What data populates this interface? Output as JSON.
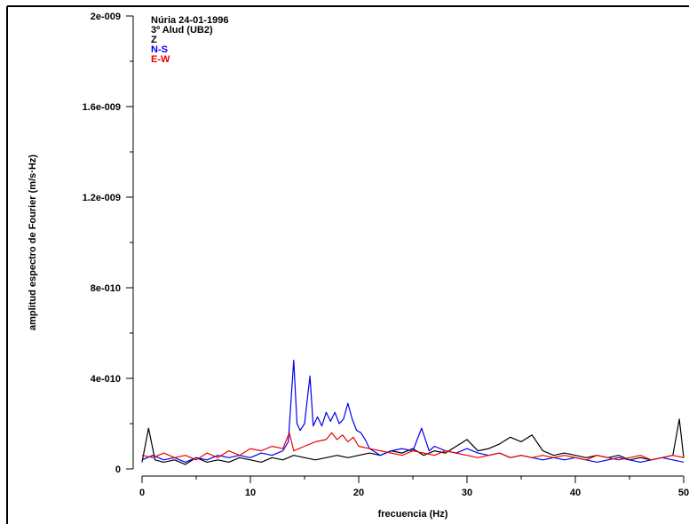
{
  "chart_data": {
    "type": "line",
    "xlabel": "frecuencia (Hz)",
    "ylabel": "amplitud espectro de Fourier (m/s·Hz)",
    "xlim": [
      0,
      50
    ],
    "ylim": [
      0,
      2e-09
    ],
    "x_ticks": [
      0,
      10,
      20,
      30,
      40,
      50
    ],
    "x_tick_labels": [
      "0",
      "10",
      "20",
      "30",
      "40",
      "50"
    ],
    "y_ticks": [
      0,
      4e-10,
      8e-10,
      1.2e-09,
      1.6e-09,
      2e-09
    ],
    "y_tick_labels": [
      "0",
      "4e-010",
      "8e-010",
      "1.2e-009",
      "1.6e-009",
      "2e-009"
    ],
    "legend_position": "top-left",
    "legend_lines": [
      {
        "text": "Núria 24-01-1996",
        "color": "#000000"
      },
      {
        "text": "3º Alud (UB2)",
        "color": "#000000"
      },
      {
        "text": "Z",
        "color": "#000000"
      },
      {
        "text": "N-S",
        "color": "#0000ee"
      },
      {
        "text": "E-W",
        "color": "#ee0000"
      }
    ],
    "series": [
      {
        "name": "Z",
        "color": "#000000",
        "x": [
          0,
          0.6,
          1.2,
          2,
          3,
          4,
          5,
          6,
          7,
          8,
          9,
          10,
          11,
          12,
          13,
          14,
          15,
          16,
          17,
          18,
          19,
          20,
          21,
          22,
          23,
          24,
          25,
          26,
          27,
          28,
          29,
          30,
          31,
          32,
          33,
          34,
          35,
          36,
          37,
          38,
          39,
          40,
          41,
          42,
          43,
          44,
          45,
          46,
          47,
          48,
          49,
          49.6,
          50
        ],
        "values": [
          3e-11,
          1.8e-10,
          4e-11,
          3e-11,
          4e-11,
          2e-11,
          5e-11,
          3e-11,
          4e-11,
          3e-11,
          5e-11,
          4e-11,
          3e-11,
          5e-11,
          4e-11,
          6e-11,
          5e-11,
          4e-11,
          5e-11,
          6e-11,
          5e-11,
          6e-11,
          7e-11,
          6e-11,
          8e-11,
          7e-11,
          9e-11,
          6e-11,
          8e-11,
          7e-11,
          1e-10,
          1.3e-10,
          8e-11,
          9e-11,
          1.1e-10,
          1.4e-10,
          1.2e-10,
          1.5e-10,
          8e-11,
          6e-11,
          7e-11,
          6e-11,
          5e-11,
          6e-11,
          5e-11,
          6e-11,
          4e-11,
          5e-11,
          4e-11,
          5e-11,
          6e-11,
          2.2e-10,
          5e-11
        ]
      },
      {
        "name": "N-S",
        "color": "#0000ee",
        "x": [
          0,
          1,
          2,
          3,
          4,
          5,
          6,
          7,
          8,
          9,
          10,
          11,
          12,
          13,
          13.5,
          14,
          14.3,
          14.6,
          15,
          15.5,
          15.8,
          16.2,
          16.6,
          17,
          17.4,
          17.8,
          18.2,
          18.6,
          19,
          19.4,
          19.8,
          20.2,
          20.6,
          21,
          22,
          23,
          24,
          25,
          25.8,
          26.5,
          27,
          28,
          29,
          30,
          31,
          32,
          33,
          34,
          35,
          36,
          37,
          38,
          39,
          40,
          41,
          42,
          43,
          44,
          45,
          46,
          47,
          48,
          49,
          50
        ],
        "values": [
          4e-11,
          6e-11,
          4e-11,
          5e-11,
          3e-11,
          5e-11,
          4e-11,
          6e-11,
          5e-11,
          6e-11,
          5e-11,
          7e-11,
          6e-11,
          8e-11,
          1.2e-10,
          4.8e-10,
          2e-10,
          1.7e-10,
          2e-10,
          4.1e-10,
          1.9e-10,
          2.3e-10,
          1.9e-10,
          2.5e-10,
          2.1e-10,
          2.5e-10,
          2e-10,
          2.2e-10,
          2.9e-10,
          2.2e-10,
          1.7e-10,
          1.6e-10,
          1.3e-10,
          9e-11,
          6e-11,
          8e-11,
          9e-11,
          8e-11,
          1.8e-10,
          8e-11,
          1e-10,
          8e-11,
          7e-11,
          9e-11,
          7e-11,
          6e-11,
          7e-11,
          5e-11,
          6e-11,
          5e-11,
          4e-11,
          5e-11,
          4e-11,
          5e-11,
          4e-11,
          3e-11,
          4e-11,
          5e-11,
          4e-11,
          3e-11,
          4e-11,
          5e-11,
          4e-11,
          3e-11
        ]
      },
      {
        "name": "E-W",
        "color": "#ee0000",
        "x": [
          0,
          1,
          2,
          3,
          4,
          5,
          6,
          7,
          8,
          9,
          10,
          11,
          12,
          13,
          13.6,
          14,
          15,
          16,
          17,
          17.5,
          18,
          18.5,
          19,
          19.5,
          20,
          21,
          22,
          23,
          24,
          25,
          26,
          27,
          28,
          29,
          30,
          31,
          32,
          33,
          34,
          35,
          36,
          37,
          38,
          39,
          40,
          41,
          42,
          43,
          44,
          45,
          46,
          47,
          48,
          49,
          50
        ],
        "values": [
          6e-11,
          5e-11,
          7e-11,
          5e-11,
          6e-11,
          4e-11,
          7e-11,
          5e-11,
          8e-11,
          6e-11,
          9e-11,
          8e-11,
          1e-10,
          9e-11,
          1.6e-10,
          8e-11,
          1e-10,
          1.2e-10,
          1.3e-10,
          1.6e-10,
          1.3e-10,
          1.5e-10,
          1.2e-10,
          1.4e-10,
          1e-10,
          9e-11,
          8e-11,
          7e-11,
          6e-11,
          8e-11,
          7e-11,
          6e-11,
          8e-11,
          7e-11,
          6e-11,
          5e-11,
          6e-11,
          7e-11,
          5e-11,
          6e-11,
          5e-11,
          6e-11,
          5e-11,
          6e-11,
          5e-11,
          4e-11,
          6e-11,
          5e-11,
          4e-11,
          5e-11,
          6e-11,
          4e-11,
          5e-11,
          6e-11,
          5e-11
        ]
      }
    ]
  }
}
